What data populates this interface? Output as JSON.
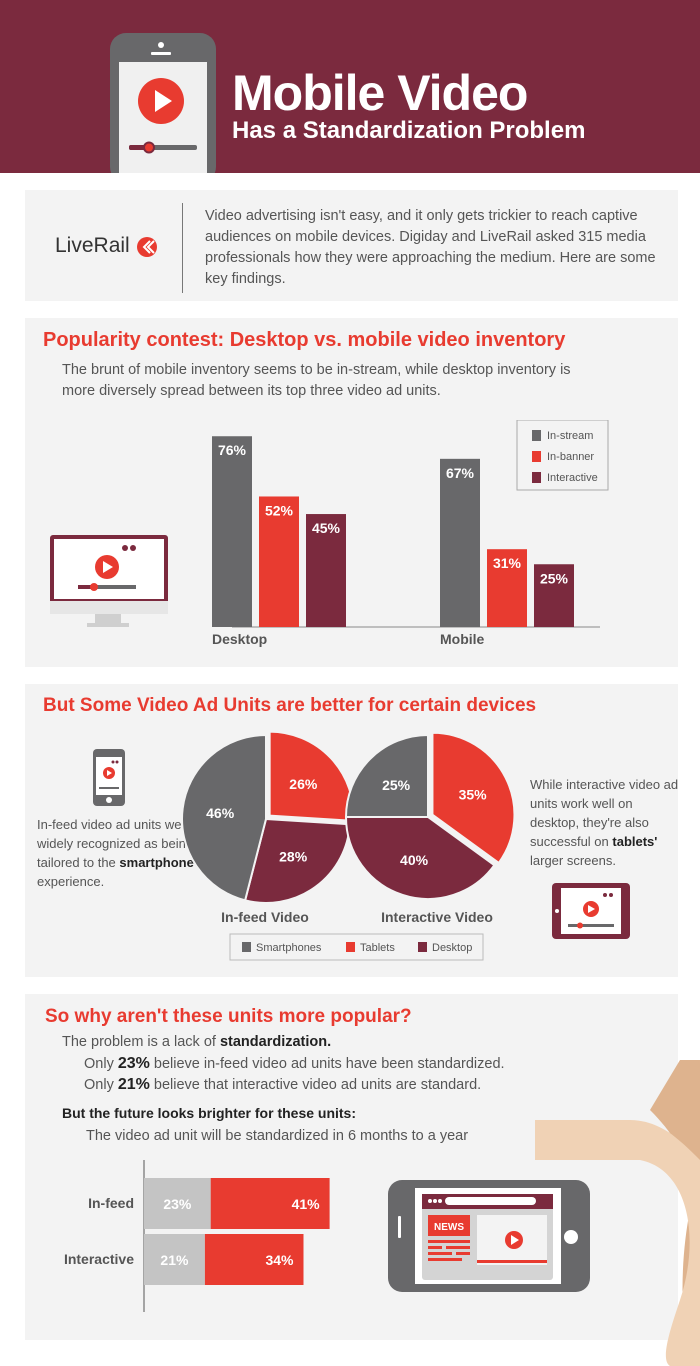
{
  "header": {
    "title": "Mobile Video",
    "subtitle": "Has a Standardization Problem"
  },
  "intro": {
    "logo": "LiveRail",
    "text": "Video advertising isn't easy, and it only gets trickier to reach captive audiences on mobile devices. Digiday and LiveRail asked 315 media professionals how they were approaching the medium. Here are some key findings."
  },
  "section1": {
    "heading": "Popularity contest: Desktop vs. mobile video inventory",
    "text": "The brunt of mobile inventory seems to be in-stream, while desktop inventory is more diversely spread between its top three video ad units."
  },
  "section2": {
    "heading": "But Some Video Ad Units are better for certain devices",
    "left_text": "In-feed video ad units were widely recognized as being tailored to the",
    "left_bold": "smartphone",
    "left_end": " experience.",
    "right_text": "While interactive video ad units work well on desktop, they're also successful on",
    "right_bold": "tablets'",
    "right_end": " larger screens."
  },
  "section3": {
    "heading": "So why aren't these units more popular?",
    "line1": "The problem is a lack of ",
    "line1_bold": "standardization.",
    "line2a": "Only ",
    "line2_bold": "23%",
    "line2b": " believe in-feed video ad units have been standardized.",
    "line3a": "Only ",
    "line3_bold": "21%",
    "line3b": " believe that interactive video ad units are standard.",
    "sub_heading": "But the future looks brighter for these units:",
    "sub_text": "The video ad unit will be standardized in 6 months to a year",
    "news_label": "NEWS"
  },
  "colors": {
    "maroon": "#7b2a3e",
    "red": "#e83b30",
    "gray": "#68686a",
    "light_gray": "#c4c4c4"
  },
  "chart_data": [
    {
      "type": "bar",
      "categories": [
        "Desktop",
        "Mobile"
      ],
      "series": [
        {
          "name": "In-stream",
          "values": [
            76,
            67
          ],
          "color": "#68686a"
        },
        {
          "name": "In-banner",
          "values": [
            52,
            31
          ],
          "color": "#e83b30"
        },
        {
          "name": "Interactive",
          "values": [
            45,
            25
          ],
          "color": "#7b2a3e"
        }
      ],
      "legend": "top-right",
      "unit": "%"
    },
    {
      "type": "pie",
      "title": "In-feed Video",
      "slices": [
        {
          "name": "Smartphones",
          "value": 46
        },
        {
          "name": "Tablets",
          "value": 26
        },
        {
          "name": "Desktop",
          "value": 28
        }
      ]
    },
    {
      "type": "pie",
      "title": "Interactive Video",
      "slices": [
        {
          "name": "Smartphones",
          "value": 25
        },
        {
          "name": "Tablets",
          "value": 35
        },
        {
          "name": "Desktop",
          "value": 40
        }
      ],
      "legend": [
        "Smartphones",
        "Tablets",
        "Desktop"
      ]
    },
    {
      "type": "bar",
      "orientation": "horizontal",
      "stacked": true,
      "categories": [
        "In-feed",
        "Interactive"
      ],
      "series": [
        {
          "values": [
            23,
            21
          ],
          "color": "#c4c4c4"
        },
        {
          "values": [
            41,
            34
          ],
          "color": "#e83b30"
        }
      ],
      "unit": "%"
    }
  ]
}
